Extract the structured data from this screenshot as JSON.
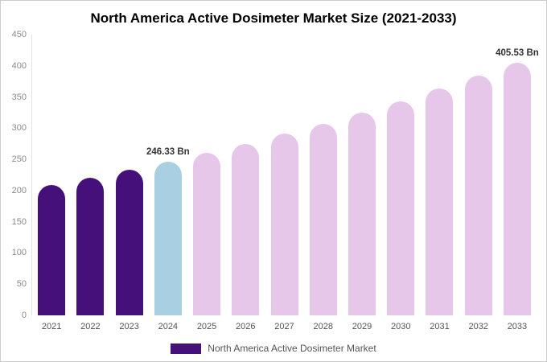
{
  "page": {
    "background": "#ffffff",
    "border_color": "#cccccc"
  },
  "chart_data": {
    "type": "bar",
    "title": "North America Active Dosimeter Market Size (2021-2033)",
    "categories": [
      "2021",
      "2022",
      "2023",
      "2024",
      "2025",
      "2026",
      "2027",
      "2028",
      "2029",
      "2030",
      "2031",
      "2032",
      "2033"
    ],
    "values": [
      208.6,
      220.5,
      233.1,
      246.33,
      260.3,
      275.2,
      290.9,
      307.5,
      325.0,
      343.5,
      363.1,
      383.7,
      405.53
    ],
    "bar_colors": [
      "#45107a",
      "#45107a",
      "#45107a",
      "#a9cfe3",
      "#e6c6e9",
      "#e6c6e9",
      "#e6c6e9",
      "#e6c6e9",
      "#e6c6e9",
      "#e6c6e9",
      "#e6c6e9",
      "#e6c6e9",
      "#e6c6e9"
    ],
    "annotations": [
      {
        "category": "2024",
        "text": "246.33 Bn"
      },
      {
        "category": "2033",
        "text": "405.53 Bn"
      }
    ],
    "xlabel": "",
    "ylabel": "",
    "ylim": [
      0,
      450
    ],
    "ytick_step": 50,
    "grid": false,
    "legend_position": "bottom"
  },
  "legend": {
    "label": "North America Active Dosimeter Market",
    "swatch_color": "#45107a"
  },
  "colors": {
    "purple": "#45107a",
    "light_blue": "#a9cfe3",
    "light_pink": "#e6c6e9",
    "axis_text": "#8a8a8a",
    "x_text": "#555555",
    "annotation_text": "#333333"
  }
}
